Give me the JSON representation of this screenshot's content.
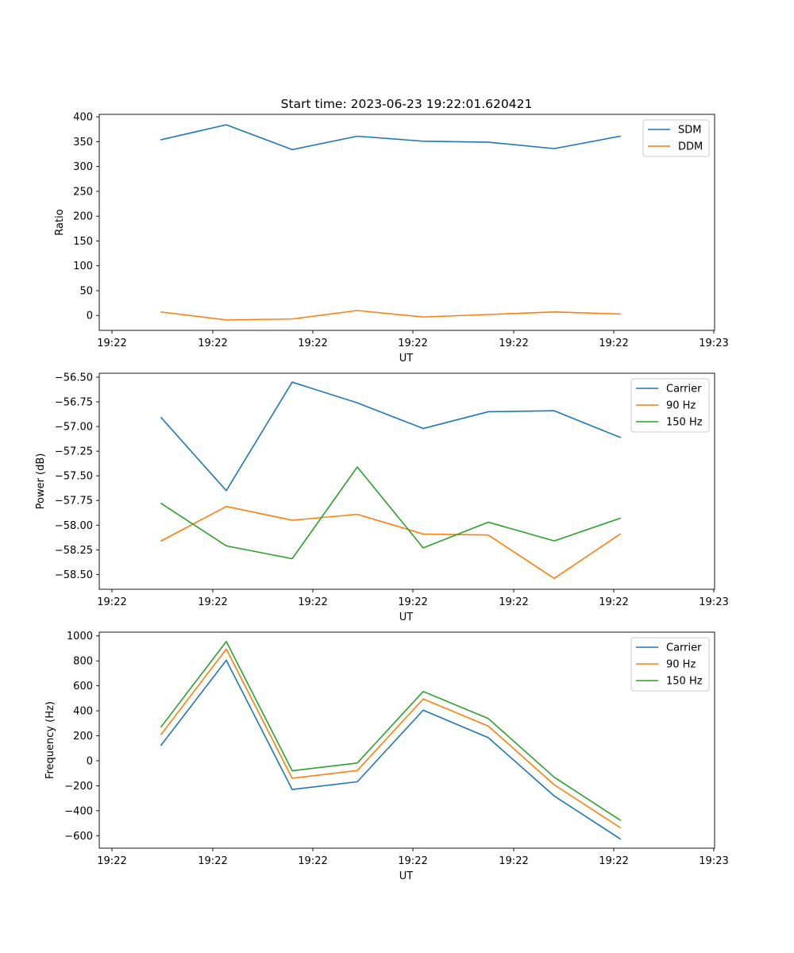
{
  "figure": {
    "title": "Start time: 2023-06-23 19:22:01.620421"
  },
  "chart_data": [
    {
      "type": "line",
      "x": [
        "19:22:01.71",
        "19:22:01.81",
        "19:22:01.91",
        "19:22:02.01",
        "19:22:02.11",
        "19:22:02.21",
        "19:22:02.31",
        "19:22:02.41"
      ],
      "xlabel": "UT",
      "ylabel": "Ratio",
      "xticks": [
        "19:22",
        "19:22",
        "19:22",
        "19:22",
        "19:22",
        "19:22",
        "19:22"
      ],
      "xticks_end": "19:23",
      "ylim": [
        -30,
        405
      ],
      "yticks": [
        0,
        50,
        100,
        150,
        200,
        250,
        300,
        350,
        400
      ],
      "legend": "top-right",
      "grid": false,
      "series": [
        {
          "name": "SDM",
          "color": "#1f77b4",
          "values": [
            354,
            384,
            334,
            361,
            351,
            349,
            336,
            361
          ]
        },
        {
          "name": "DDM",
          "color": "#ff7f0e",
          "values": [
            7,
            -9,
            -7,
            10,
            -3,
            2,
            7,
            3
          ]
        }
      ]
    },
    {
      "type": "line",
      "x": [
        "19:22:01.71",
        "19:22:01.81",
        "19:22:01.91",
        "19:22:02.01",
        "19:22:02.11",
        "19:22:02.21",
        "19:22:02.31",
        "19:22:02.41"
      ],
      "xlabel": "UT",
      "ylabel": "Power (dB)",
      "xticks": [
        "19:22",
        "19:22",
        "19:22",
        "19:22",
        "19:22",
        "19:22",
        "19:22"
      ],
      "xticks_end": "19:23",
      "ylim": [
        -58.65,
        -56.46
      ],
      "yticks": [
        -56.5,
        -56.75,
        -57.0,
        -57.25,
        -57.5,
        -57.75,
        -58.0,
        -58.25,
        -58.5
      ],
      "ytick_labels": [
        "−56.50",
        "−56.75",
        "−57.00",
        "−57.25",
        "−57.50",
        "−57.75",
        "−58.00",
        "−58.25",
        "−58.50"
      ],
      "legend": "top-right",
      "grid": false,
      "series": [
        {
          "name": "Carrier",
          "color": "#1f77b4",
          "values": [
            -56.91,
            -57.65,
            -56.55,
            -56.76,
            -57.02,
            -56.85,
            -56.84,
            -57.11
          ]
        },
        {
          "name": "90 Hz",
          "color": "#ff7f0e",
          "values": [
            -58.16,
            -57.81,
            -57.95,
            -57.89,
            -58.09,
            -58.1,
            -58.54,
            -58.09
          ]
        },
        {
          "name": "150 Hz",
          "color": "#2ca02c",
          "values": [
            -57.78,
            -58.21,
            -58.34,
            -57.41,
            -58.23,
            -57.97,
            -58.16,
            -57.93
          ]
        }
      ]
    },
    {
      "type": "line",
      "x": [
        "19:22:01.71",
        "19:22:01.81",
        "19:22:01.91",
        "19:22:02.01",
        "19:22:02.11",
        "19:22:02.21",
        "19:22:02.31",
        "19:22:02.41"
      ],
      "xlabel": "UT",
      "ylabel": "Frequency (Hz)",
      "xticks": [
        "19:22",
        "19:22",
        "19:22",
        "19:22",
        "19:22",
        "19:22",
        "19:22"
      ],
      "xticks_end": "19:23",
      "ylim": [
        -700,
        1030
      ],
      "yticks": [
        -600,
        -400,
        -200,
        0,
        200,
        400,
        600,
        800,
        1000
      ],
      "ytick_labels": [
        "−600",
        "−400",
        "−200",
        "0",
        "200",
        "400",
        "600",
        "800",
        "1000"
      ],
      "legend": "top-right",
      "grid": false,
      "series": [
        {
          "name": "Carrier",
          "color": "#1f77b4",
          "values": [
            125,
            805,
            -230,
            -168,
            405,
            185,
            -282,
            -625
          ]
        },
        {
          "name": "90 Hz",
          "color": "#ff7f0e",
          "values": [
            212,
            895,
            -140,
            -78,
            495,
            278,
            -192,
            -535
          ]
        },
        {
          "name": "150 Hz",
          "color": "#2ca02c",
          "values": [
            272,
            955,
            -80,
            -18,
            555,
            338,
            -132,
            -475
          ]
        }
      ]
    }
  ]
}
